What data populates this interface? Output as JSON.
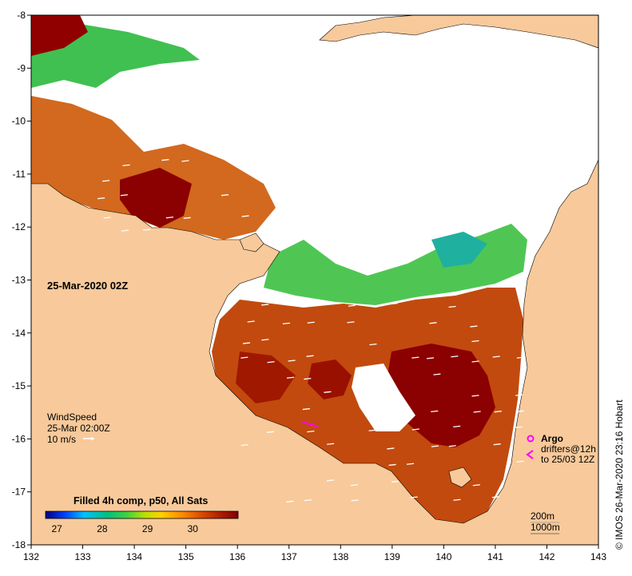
{
  "map": {
    "date_label": "25-Mar-2020 02Z",
    "lon_ticks": [
      "132",
      "133",
      "134",
      "135",
      "136",
      "137",
      "138",
      "139",
      "140",
      "141",
      "142",
      "143"
    ],
    "lat_ticks": [
      "-8",
      "-9",
      "-10",
      "-11",
      "-12",
      "-13",
      "-14",
      "-15",
      "-16",
      "-17",
      "-18"
    ],
    "lon_range": [
      132,
      143
    ],
    "lat_range": [
      -8,
      -18
    ]
  },
  "wind_legend": {
    "title": "WindSpeed",
    "time": "25-Mar 02:00Z",
    "scale": "10 m/s"
  },
  "argo_legend": {
    "title": "Argo",
    "line1": "drifters@12h",
    "line2": "to 25/03 12Z",
    "float_color": "#ff00ff",
    "drifter_color": "#ff00ff"
  },
  "isobath_legend": {
    "depth1": "200m",
    "depth2": "1000m"
  },
  "colorbar": {
    "title": "Filled 4h comp, p50, All Sats",
    "ticks": [
      "27",
      "28",
      "29",
      "30"
    ],
    "range": [
      26.75,
      31.0
    ],
    "stops": [
      "#000080",
      "#0040ff",
      "#00c0ff",
      "#00c080",
      "#40d040",
      "#c0e000",
      "#ffd000",
      "#ff9000",
      "#e05000",
      "#b02000",
      "#800000"
    ]
  },
  "credit": "© IMOS 26-Mar-2020 23:16 Hobart",
  "colors": {
    "land": "#f8c99a",
    "no_data": "#ffffff",
    "warm": "#8b0000",
    "mid": "#d2691e"
  }
}
